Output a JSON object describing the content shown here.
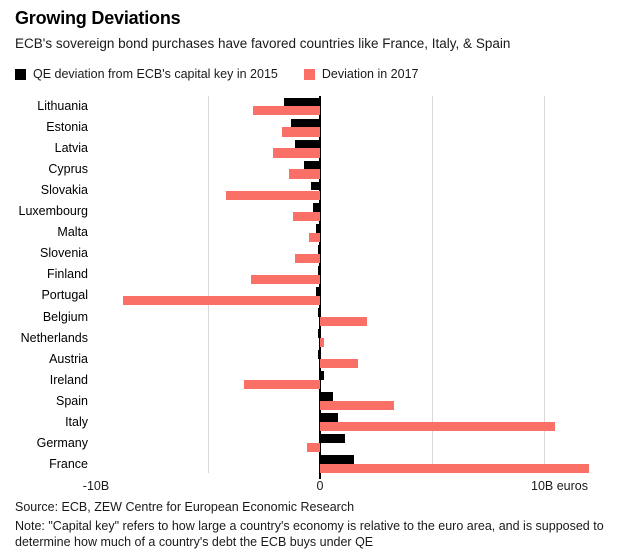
{
  "header": {
    "title": "Growing Deviations",
    "subtitle": "ECB's sovereign bond purchases have favored countries like France, Italy, & Spain"
  },
  "legend": {
    "items": [
      {
        "label": "QE deviation from ECB's capital key in 2015",
        "color": "#000000"
      },
      {
        "label": "Deviation in 2017",
        "color": "#fa6f66"
      }
    ]
  },
  "chart_data": {
    "type": "bar",
    "orientation": "horizontal",
    "unit": "billions of euros",
    "title": "Growing Deviations",
    "xlabel": "euros",
    "xlim": [
      -14.3,
      14.3
    ],
    "grid": "vertical",
    "gridline_values": [
      -5,
      5,
      10
    ],
    "axis_ticks": [
      {
        "value": -10,
        "label": "-10B"
      },
      {
        "value": 0,
        "label": "0"
      },
      {
        "value": 10,
        "label": "10B euros"
      }
    ],
    "categories": [
      "Lithuania",
      "Estonia",
      "Latvia",
      "Cyprus",
      "Slovakia",
      "Luxembourg",
      "Malta",
      "Slovenia",
      "Finland",
      "Portugal",
      "Belgium",
      "Netherlands",
      "Austria",
      "Ireland",
      "Spain",
      "Italy",
      "Germany",
      "France"
    ],
    "series": [
      {
        "name": "QE deviation from ECB's capital key in 2015",
        "color": "#000000",
        "values": [
          -1.6,
          -1.3,
          -1.1,
          -0.7,
          -0.4,
          -0.3,
          -0.2,
          -0.1,
          -0.1,
          -0.2,
          -0.1,
          -0.1,
          -0.1,
          0.2,
          0.6,
          0.8,
          1.1,
          1.5
        ]
      },
      {
        "name": "Deviation in 2017",
        "color": "#fa6f66",
        "values": [
          -3.0,
          -1.7,
          -2.1,
          -1.4,
          -4.2,
          -1.2,
          -0.5,
          -1.1,
          -3.1,
          -8.8,
          2.1,
          0.2,
          1.7,
          -3.4,
          3.3,
          10.5,
          -0.6,
          12.0
        ]
      }
    ],
    "colors": {
      "gridline": "#d9d9d9",
      "axis": "#000000"
    }
  },
  "footer": {
    "source": "Source: ECB, ZEW Centre for European Economic Research",
    "note": "Note: \"Capital key\" refers to how large a country's economy is relative to the euro area, and is supposed to determine how much of a country's debt the ECB buys under QE"
  }
}
